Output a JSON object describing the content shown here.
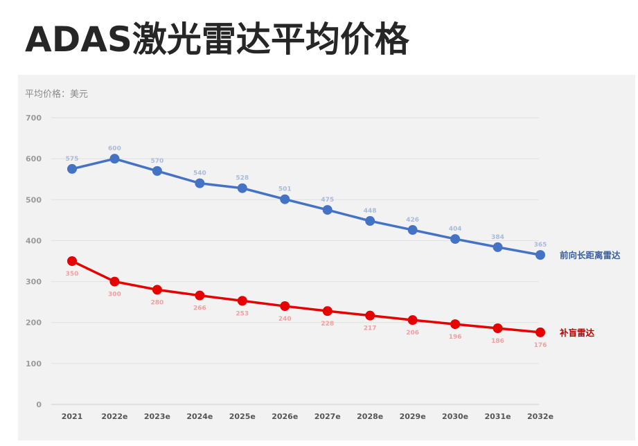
{
  "title": "ADAS激光雷达平均价格",
  "chart_data": {
    "type": "line",
    "title": "ADAS激光雷达平均价格",
    "ylabel": "平均价格：美元",
    "categories": [
      "2021",
      "2022e",
      "2023e",
      "2024e",
      "2025e",
      "2026e",
      "2027e",
      "2028e",
      "2029e",
      "2030e",
      "2031e",
      "2032e"
    ],
    "ylim": [
      0,
      700
    ],
    "yticks": [
      0,
      100,
      200,
      300,
      400,
      500,
      600,
      700
    ],
    "grid": true,
    "legend": "series labels at line ends (right)",
    "series": [
      {
        "name": "前向长距离雷达",
        "color": "#4472c4",
        "label_color": "#aabbd8",
        "name_color": "#3a5f9c",
        "label_position": "above",
        "values": [
          575,
          600,
          570,
          540,
          528,
          501,
          475,
          448,
          426,
          404,
          384,
          365
        ]
      },
      {
        "name": "补盲雷达",
        "color": "#e60000",
        "label_color": "#f0a0a0",
        "name_color": "#c00000",
        "label_position": "below",
        "values": [
          350,
          300,
          280,
          266,
          253,
          240,
          228,
          217,
          206,
          196,
          186,
          176
        ]
      }
    ]
  }
}
